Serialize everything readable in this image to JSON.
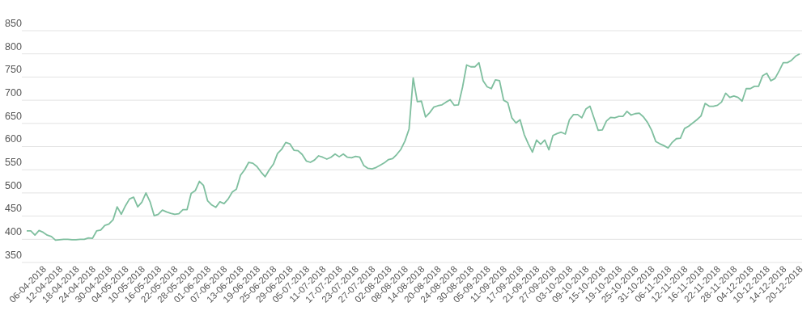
{
  "chart_data": {
    "type": "line",
    "categories": [
      null,
      null,
      null,
      null,
      "06-04-2018",
      null,
      null,
      null,
      "12-04-2018",
      null,
      null,
      null,
      "18-04-2018",
      null,
      null,
      null,
      "24-04-2018",
      null,
      null,
      null,
      "30-04-2018",
      null,
      null,
      null,
      "04-05-2018",
      null,
      null,
      null,
      "10-05-2018",
      null,
      null,
      null,
      "16-05-2018",
      null,
      null,
      null,
      "22-05-2018",
      null,
      null,
      null,
      "28-05-2018",
      null,
      null,
      null,
      "01-06-2018",
      null,
      null,
      null,
      "07-06-2018",
      null,
      null,
      null,
      "13-06-2018",
      null,
      null,
      null,
      "19-06-2018",
      null,
      null,
      null,
      "25-06-2018",
      null,
      null,
      null,
      "29-06-2018",
      null,
      null,
      null,
      "05-07-2018",
      null,
      null,
      null,
      "11-07-2018",
      null,
      null,
      null,
      "17-07-2018",
      null,
      null,
      null,
      "23-07-2018",
      null,
      null,
      null,
      "27-07-2018",
      null,
      null,
      null,
      "02-08-2018",
      null,
      null,
      null,
      "08-08-2018",
      null,
      null,
      null,
      "14-08-2018",
      null,
      null,
      null,
      "20-08-2018",
      null,
      null,
      null,
      "24-08-2018",
      null,
      null,
      null,
      "30-08-2018",
      null,
      null,
      null,
      "05-09-2018",
      null,
      null,
      null,
      "11-09-2018",
      null,
      null,
      null,
      "17-09-2018",
      null,
      null,
      null,
      "21-09-2018",
      null,
      null,
      null,
      "27-09-2018",
      null,
      null,
      null,
      "03-10-2018",
      null,
      null,
      null,
      "09-10-2018",
      null,
      null,
      null,
      "15-10-2018",
      null,
      null,
      null,
      "19-10-2018",
      null,
      null,
      null,
      "25-10-2018",
      null,
      null,
      null,
      "31-10-2018",
      null,
      null,
      null,
      "06-11-2018",
      null,
      null,
      null,
      "12-11-2018",
      null,
      null,
      null,
      "16-11-2018",
      null,
      null,
      null,
      "22-11-2018",
      null,
      null,
      null,
      "28-11-2018",
      null,
      null,
      null,
      "04-12-2018",
      null,
      null,
      null,
      "10-12-2018",
      null,
      null,
      null,
      "14-12-2018",
      null,
      null,
      null,
      "20-12-2018"
    ],
    "series": [
      {
        "color": "#7fbf9f",
        "values": [
          418,
          418,
          409,
          419,
          415,
          409,
          406,
          398,
          399,
          400,
          400,
          399,
          399,
          400,
          400,
          403,
          402,
          418,
          420,
          430,
          433,
          442,
          470,
          454,
          472,
          487,
          491,
          470,
          480,
          500,
          481,
          451,
          454,
          463,
          459,
          456,
          454,
          455,
          464,
          464,
          499,
          505,
          525,
          516,
          483,
          474,
          469,
          481,
          477,
          487,
          502,
          508,
          538,
          550,
          566,
          564,
          557,
          545,
          535,
          550,
          562,
          585,
          594,
          609,
          606,
          592,
          591,
          583,
          569,
          566,
          571,
          580,
          577,
          573,
          577,
          584,
          578,
          584,
          577,
          576,
          579,
          577,
          559,
          553,
          552,
          555,
          560,
          565,
          572,
          574,
          583,
          594,
          612,
          638,
          748,
          697,
          698,
          664,
          673,
          685,
          688,
          690,
          696,
          701,
          689,
          690,
          728,
          776,
          772,
          772,
          781,
          742,
          729,
          725,
          744,
          742,
          700,
          695,
          662,
          651,
          658,
          626,
          606,
          588,
          614,
          605,
          614,
          593,
          624,
          628,
          631,
          627,
          658,
          669,
          669,
          662,
          681,
          687,
          661,
          635,
          636,
          655,
          663,
          662,
          665,
          665,
          676,
          668,
          671,
          672,
          664,
          652,
          635,
          611,
          606,
          602,
          597,
          609,
          617,
          618,
          639,
          644,
          651,
          658,
          666,
          693,
          687,
          687,
          689,
          696,
          715,
          706,
          709,
          706,
          698,
          725,
          725,
          730,
          730,
          753,
          758,
          742,
          747,
          763,
          781,
          781,
          786,
          795,
          800
        ]
      }
    ],
    "ylim": [
      350,
      850
    ],
    "yticks": [
      350,
      400,
      450,
      500,
      550,
      600,
      650,
      700,
      750,
      800,
      850
    ],
    "grid": "y",
    "marker": "none",
    "line_style": "solid"
  }
}
